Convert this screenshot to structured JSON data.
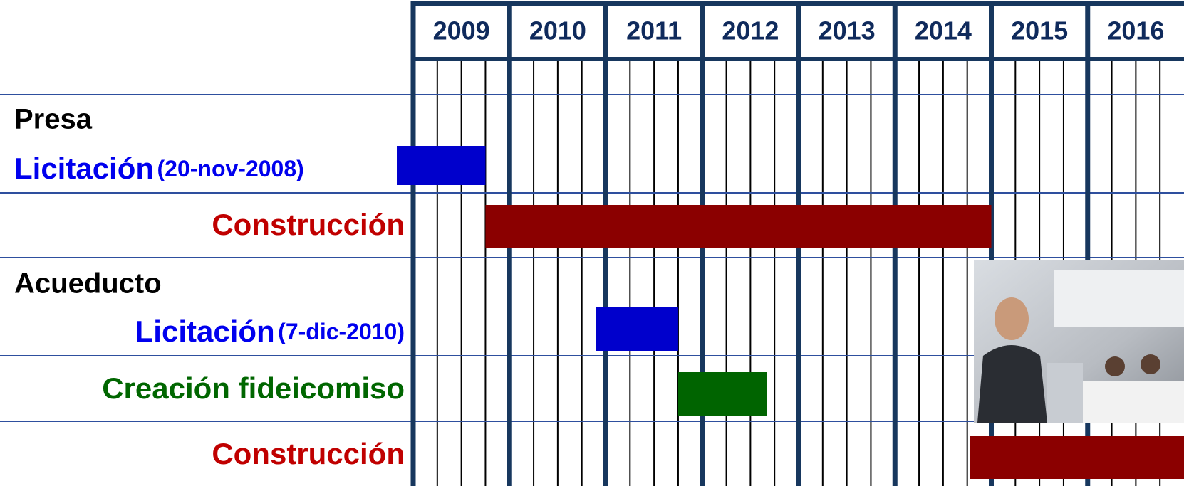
{
  "chart_data": {
    "type": "gantt",
    "xlim": [
      2009,
      2017
    ],
    "xticks": [
      2009,
      2010,
      2011,
      2012,
      2013,
      2014,
      2015,
      2016
    ],
    "groups": [
      {
        "name": "Presa",
        "tasks": [
          {
            "name": "Licitación",
            "note": "(20-nov-2008)",
            "start": 2008.83,
            "end": 2009.75,
            "color": "#0000cc",
            "label_color": "#0000ee"
          },
          {
            "name": "Construcción",
            "start": 2009.75,
            "end": 2015.0,
            "color": "#8b0000",
            "label_color": "#c00000"
          }
        ]
      },
      {
        "name": "Acueducto",
        "tasks": [
          {
            "name": "Licitación",
            "note": "(7-dic-2010)",
            "start": 2010.9,
            "end": 2011.75,
            "color": "#0000cc",
            "label_color": "#0000ee"
          },
          {
            "name": "Creación fideicomiso",
            "start": 2011.75,
            "end": 2012.67,
            "color": "#006400",
            "label_color": "#006600"
          },
          {
            "name": "Construcción",
            "start": 2014.78,
            "end": 2017.0,
            "color": "#8b0000",
            "label_color": "#c00000"
          }
        ]
      }
    ]
  }
}
